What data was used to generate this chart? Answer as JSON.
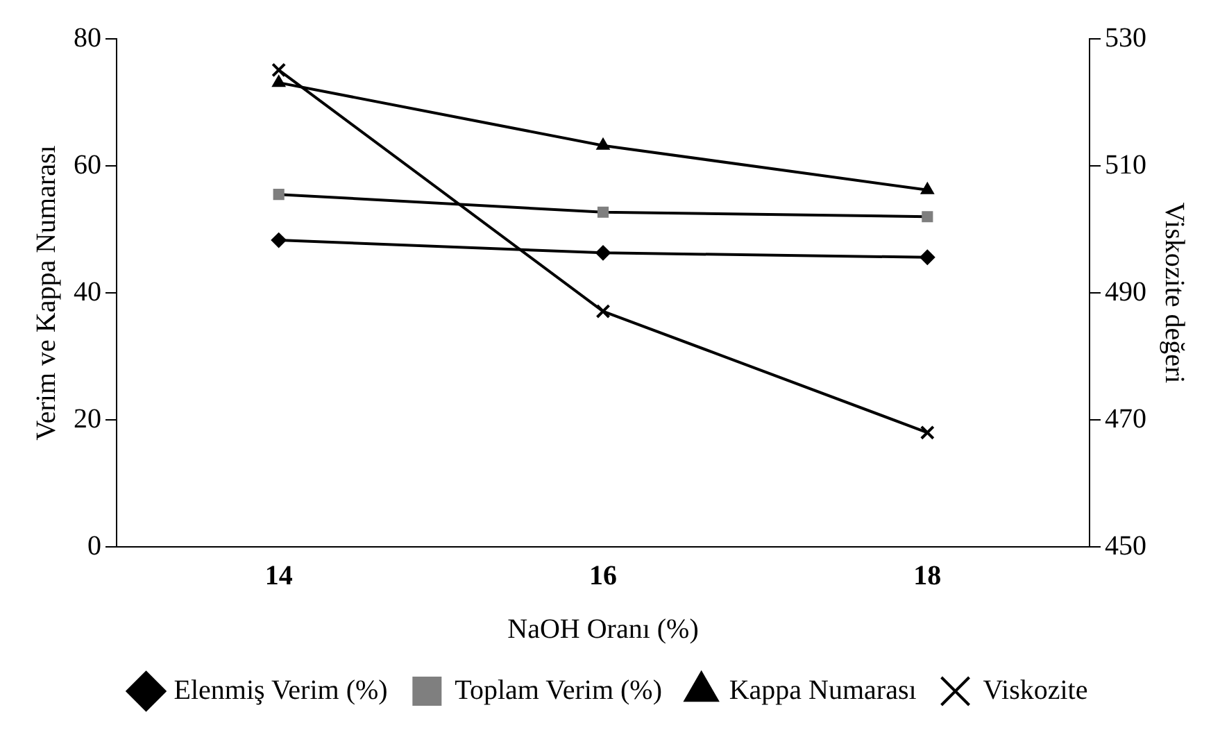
{
  "chart_data": {
    "type": "line",
    "xlabel": "NaOH Oranı (%)",
    "ylabel": "Verim ve Kappa Numarası",
    "y2label": "Viskozite değeri",
    "categories": [
      "14",
      "16",
      "18"
    ],
    "series": [
      {
        "name": "Elenmiş Verim (%)",
        "color": "#000000",
        "marker": "diamond",
        "values": [
          48.3,
          46.3,
          45.6
        ]
      },
      {
        "name": "Toplam Verim (%)",
        "color": "#7f7f7f",
        "marker": "square",
        "values": [
          55.5,
          52.7,
          52.0
        ]
      },
      {
        "name": "Kappa Numarası",
        "color": "#000000",
        "marker": "triangle",
        "values": [
          73.1,
          63.2,
          56.2
        ]
      },
      {
        "name": "Viskozite",
        "color": "#000000",
        "marker": "cross",
        "axis": "y2",
        "values": [
          525.1,
          487.1,
          468.0
        ]
      }
    ],
    "ylim": [
      0,
      80
    ],
    "yticks": [
      0,
      20,
      40,
      60,
      80
    ],
    "y2lim": [
      450,
      530
    ],
    "y2ticks": [
      450,
      470,
      490,
      510,
      530
    ],
    "grid": false,
    "legend": "bottom",
    "line_style": "solid"
  }
}
